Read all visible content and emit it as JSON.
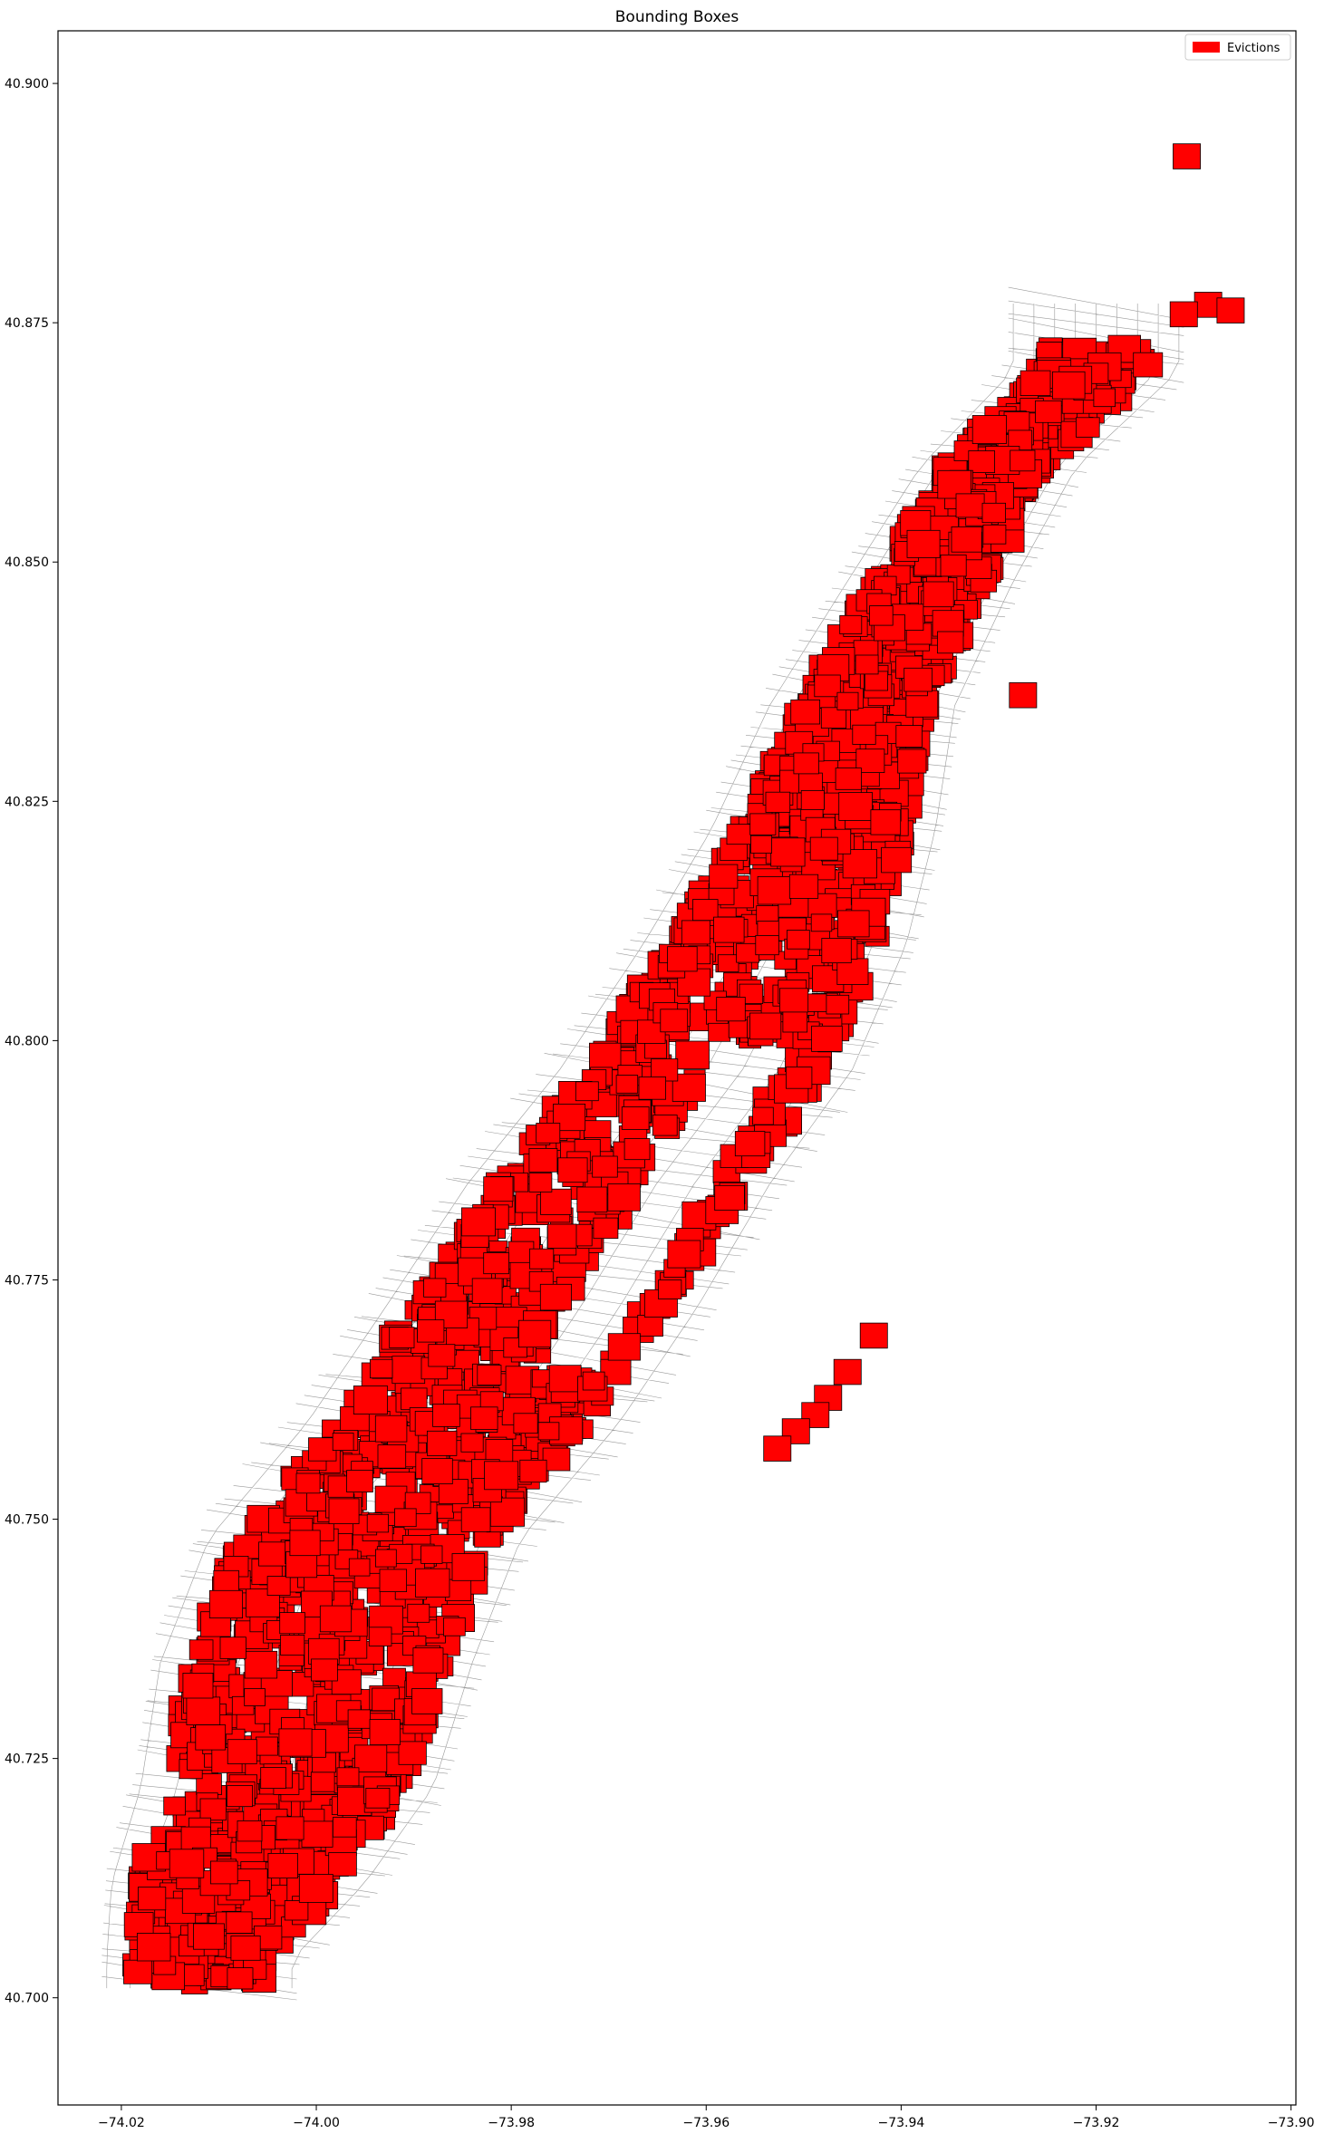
{
  "chart_data": {
    "type": "map",
    "title": "Bounding Boxes",
    "xlabel": "",
    "ylabel": "",
    "xlim": [
      -74.0265,
      -73.8995
    ],
    "ylim": [
      40.6888,
      40.9055
    ],
    "x_ticks": [
      -74.02,
      -74.0,
      -73.98,
      -73.96,
      -73.94,
      -73.92,
      -73.9
    ],
    "x_tick_labels": [
      "−74.02",
      "−74.00",
      "−73.98",
      "−73.96",
      "−73.94",
      "−73.92",
      "−73.90"
    ],
    "y_ticks": [
      40.7,
      40.725,
      40.75,
      40.775,
      40.8,
      40.825,
      40.85,
      40.875,
      40.9
    ],
    "y_tick_labels": [
      "40.700",
      "40.725",
      "40.750",
      "40.775",
      "40.800",
      "40.825",
      "40.850",
      "40.875",
      "40.900"
    ],
    "grid": false,
    "legend": {
      "placement": "upper-right",
      "entries": [
        {
          "label": "Evictions",
          "color": "#ff0000"
        }
      ]
    },
    "colors": {
      "evictions_fill": "#ff0000",
      "evictions_edge": "#000000",
      "streets": "#9a9a9a",
      "axes": "#000000"
    },
    "series": [
      {
        "name": "Evictions",
        "kind": "bounding-boxes",
        "box_size_deg": 0.0028,
        "region_center_line": [
          {
            "y": 40.704,
            "x": -74.012,
            "half_width": 0.0065
          },
          {
            "y": 40.712,
            "x": -74.008,
            "half_width": 0.01
          },
          {
            "y": 40.722,
            "x": -74.003,
            "half_width": 0.012
          },
          {
            "y": 40.735,
            "x": -74.0,
            "half_width": 0.013
          },
          {
            "y": 40.748,
            "x": -73.995,
            "half_width": 0.013
          },
          {
            "y": 40.76,
            "x": -73.985,
            "half_width": 0.013
          },
          {
            "y": 40.772,
            "x": -73.977,
            "half_width": 0.013
          },
          {
            "y": 40.785,
            "x": -73.969,
            "half_width": 0.0125
          },
          {
            "y": 40.797,
            "x": -73.96,
            "half_width": 0.012
          },
          {
            "y": 40.81,
            "x": -73.953,
            "half_width": 0.0105
          },
          {
            "y": 40.822,
            "x": -73.948,
            "half_width": 0.0085
          },
          {
            "y": 40.835,
            "x": -73.944,
            "half_width": 0.0065
          },
          {
            "y": 40.848,
            "x": -73.937,
            "half_width": 0.0055
          },
          {
            "y": 40.86,
            "x": -73.93,
            "half_width": 0.005
          },
          {
            "y": 40.87,
            "x": -73.92,
            "half_width": 0.0055
          }
        ],
        "outliers": [
          {
            "x": -73.9107,
            "y": 40.8925
          },
          {
            "x": -73.9085,
            "y": 40.877
          },
          {
            "x": -73.911,
            "y": 40.876
          },
          {
            "x": -73.9062,
            "y": 40.8764
          },
          {
            "x": -73.9275,
            "y": 40.8362
          },
          {
            "x": -73.9428,
            "y": 40.7693
          },
          {
            "x": -73.9455,
            "y": 40.7655
          },
          {
            "x": -73.9475,
            "y": 40.7628
          },
          {
            "x": -73.9488,
            "y": 40.761
          },
          {
            "x": -73.9508,
            "y": 40.7593
          },
          {
            "x": -73.9527,
            "y": 40.7575
          }
        ]
      }
    ]
  }
}
